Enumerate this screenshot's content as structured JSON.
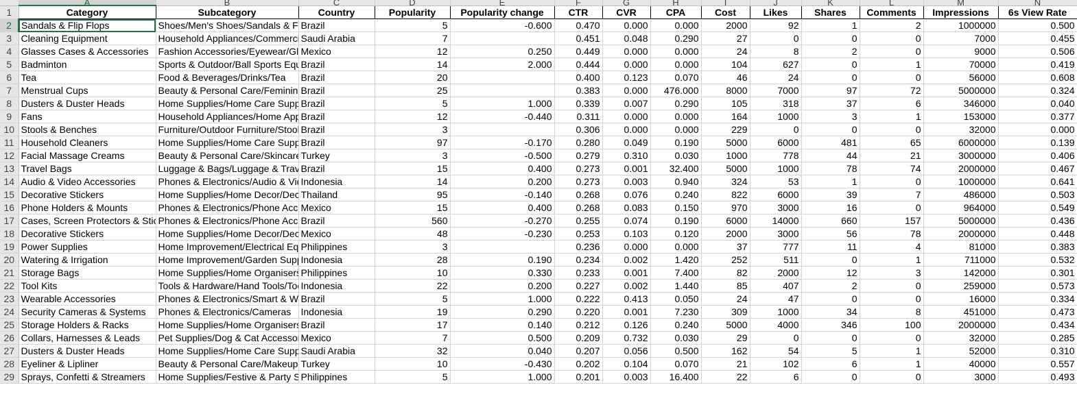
{
  "columns": [
    "A",
    "B",
    "C",
    "D",
    "E",
    "F",
    "G",
    "H",
    "I",
    "J",
    "K",
    "L",
    "M",
    "N"
  ],
  "col_align": [
    "left",
    "left",
    "left",
    "right",
    "right",
    "right",
    "right",
    "right",
    "right",
    "right",
    "right",
    "right",
    "right",
    "right"
  ],
  "headers": [
    "Category",
    "Subcategory",
    "Country",
    "Popularity",
    "Popularity change",
    "CTR",
    "CVR",
    "CPA",
    "Cost",
    "Likes",
    "Shares",
    "Comments",
    "Impressions",
    "6s View Rate"
  ],
  "selected_cell": {
    "col": 0,
    "row": 2
  },
  "rows": [
    {
      "n": "2",
      "c": [
        "Sandals & Flip Flops",
        "Shoes/Men's Shoes/Sandals & Flip Flops",
        "Brazil",
        "5",
        "-0.600",
        "0.470",
        "0.000",
        "0.000",
        "2000",
        "92",
        "1",
        "2",
        "1000000",
        "0.500"
      ]
    },
    {
      "n": "3",
      "c": [
        "Cleaning Equipment",
        "Household Appliances/Commercial Appliances",
        "Saudi Arabia",
        "7",
        "",
        "0.451",
        "0.048",
        "0.290",
        "27",
        "0",
        "0",
        "0",
        "7000",
        "0.455"
      ]
    },
    {
      "n": "4",
      "c": [
        "Glasses Cases & Accessories",
        "Fashion Accessories/Eyewear/Glasses Cases",
        "Mexico",
        "12",
        "0.250",
        "0.449",
        "0.000",
        "0.000",
        "24",
        "8",
        "2",
        "0",
        "9000",
        "0.506"
      ]
    },
    {
      "n": "5",
      "c": [
        "Badminton",
        "Sports & Outdoor/Ball Sports Equipment",
        "Brazil",
        "14",
        "2.000",
        "0.444",
        "0.000",
        "0.000",
        "104",
        "627",
        "0",
        "1",
        "70000",
        "0.419"
      ]
    },
    {
      "n": "6",
      "c": [
        "Tea",
        "Food & Beverages/Drinks/Tea",
        "Brazil",
        "20",
        "",
        "0.400",
        "0.123",
        "0.070",
        "46",
        "24",
        "0",
        "0",
        "56000",
        "0.608"
      ]
    },
    {
      "n": "7",
      "c": [
        "Menstrual Cups",
        "Beauty & Personal Care/Feminine Care",
        "Brazil",
        "25",
        "",
        "0.383",
        "0.000",
        "476.000",
        "8000",
        "7000",
        "97",
        "72",
        "5000000",
        "0.324"
      ]
    },
    {
      "n": "8",
      "c": [
        "Dusters & Duster Heads",
        "Home Supplies/Home Care Supplies",
        "Brazil",
        "5",
        "1.000",
        "0.339",
        "0.007",
        "0.290",
        "105",
        "318",
        "37",
        "6",
        "346000",
        "0.040"
      ]
    },
    {
      "n": "9",
      "c": [
        "Fans",
        "Household Appliances/Home Appliances",
        "Brazil",
        "12",
        "-0.440",
        "0.311",
        "0.000",
        "0.000",
        "164",
        "1000",
        "3",
        "1",
        "153000",
        "0.377"
      ]
    },
    {
      "n": "10",
      "c": [
        "Stools & Benches",
        "Furniture/Outdoor Furniture/Stools",
        "Brazil",
        "3",
        "",
        "0.306",
        "0.000",
        "0.000",
        "229",
        "0",
        "0",
        "0",
        "32000",
        "0.000"
      ]
    },
    {
      "n": "11",
      "c": [
        "Household Cleaners",
        "Home Supplies/Home Care Supplies",
        "Brazil",
        "97",
        "-0.170",
        "0.280",
        "0.049",
        "0.190",
        "5000",
        "6000",
        "481",
        "65",
        "6000000",
        "0.139"
      ]
    },
    {
      "n": "12",
      "c": [
        "Facial Massage Creams",
        "Beauty & Personal Care/Skincare",
        "Turkey",
        "3",
        "-0.500",
        "0.279",
        "0.310",
        "0.030",
        "1000",
        "778",
        "44",
        "21",
        "3000000",
        "0.406"
      ]
    },
    {
      "n": "13",
      "c": [
        "Travel Bags",
        "Luggage & Bags/Luggage & Travel Bags",
        "Brazil",
        "15",
        "0.400",
        "0.273",
        "0.001",
        "32.400",
        "5000",
        "1000",
        "78",
        "74",
        "2000000",
        "0.467"
      ]
    },
    {
      "n": "14",
      "c": [
        "Audio & Video Accessories",
        "Phones & Electronics/Audio & Video",
        "Indonesia",
        "14",
        "0.200",
        "0.273",
        "0.003",
        "0.940",
        "324",
        "53",
        "1",
        "0",
        "1000000",
        "0.641"
      ]
    },
    {
      "n": "15",
      "c": [
        "Decorative Stickers",
        "Home Supplies/Home Decor/Decorative Stickers",
        "Thailand",
        "95",
        "-0.140",
        "0.268",
        "0.076",
        "0.240",
        "822",
        "6000",
        "39",
        "7",
        "486000",
        "0.503"
      ]
    },
    {
      "n": "16",
      "c": [
        "Phone Holders & Mounts",
        "Phones & Electronics/Phone Accessories",
        "Mexico",
        "15",
        "0.400",
        "0.268",
        "0.083",
        "0.150",
        "970",
        "3000",
        "16",
        "0",
        "964000",
        "0.549"
      ]
    },
    {
      "n": "17",
      "c": [
        "Cases, Screen Protectors & Stickers",
        "Phones & Electronics/Phone Accessories",
        "Brazil",
        "560",
        "-0.270",
        "0.255",
        "0.074",
        "0.190",
        "6000",
        "14000",
        "660",
        "157",
        "5000000",
        "0.436"
      ]
    },
    {
      "n": "18",
      "c": [
        "Decorative Stickers",
        "Home Supplies/Home Decor/Decorative Stickers",
        "Mexico",
        "48",
        "-0.230",
        "0.253",
        "0.103",
        "0.120",
        "2000",
        "3000",
        "56",
        "78",
        "2000000",
        "0.448"
      ]
    },
    {
      "n": "19",
      "c": [
        "Power Supplies",
        "Home Improvement/Electrical Equipment",
        "Philippines",
        "3",
        "",
        "0.236",
        "0.000",
        "0.000",
        "37",
        "777",
        "11",
        "4",
        "81000",
        "0.383"
      ]
    },
    {
      "n": "20",
      "c": [
        "Watering & Irrigation",
        "Home Improvement/Garden Supplies",
        "Indonesia",
        "28",
        "0.190",
        "0.234",
        "0.002",
        "1.420",
        "252",
        "511",
        "0",
        "1",
        "711000",
        "0.532"
      ]
    },
    {
      "n": "21",
      "c": [
        "Storage Bags",
        "Home Supplies/Home Organisers",
        "Philippines",
        "10",
        "0.330",
        "0.233",
        "0.001",
        "7.400",
        "82",
        "2000",
        "12",
        "3",
        "142000",
        "0.301"
      ]
    },
    {
      "n": "22",
      "c": [
        "Tool Kits",
        "Tools & Hardware/Hand Tools/Tool Kits",
        "Indonesia",
        "22",
        "0.200",
        "0.227",
        "0.002",
        "1.440",
        "85",
        "407",
        "2",
        "0",
        "259000",
        "0.573"
      ]
    },
    {
      "n": "23",
      "c": [
        "Wearable Accessories",
        "Phones & Electronics/Smart & Wearables",
        "Brazil",
        "5",
        "1.000",
        "0.222",
        "0.413",
        "0.050",
        "24",
        "47",
        "0",
        "0",
        "16000",
        "0.334"
      ]
    },
    {
      "n": "24",
      "c": [
        "Security Cameras & Systems",
        "Phones & Electronics/Cameras",
        "Indonesia",
        "19",
        "0.290",
        "0.220",
        "0.001",
        "7.230",
        "309",
        "1000",
        "34",
        "8",
        "451000",
        "0.473"
      ]
    },
    {
      "n": "25",
      "c": [
        "Storage Holders & Racks",
        "Home Supplies/Home Organisers",
        "Brazil",
        "17",
        "0.140",
        "0.212",
        "0.126",
        "0.240",
        "5000",
        "4000",
        "346",
        "100",
        "2000000",
        "0.434"
      ]
    },
    {
      "n": "26",
      "c": [
        "Collars, Harnesses & Leads",
        "Pet Supplies/Dog & Cat Accessories",
        "Mexico",
        "7",
        "0.500",
        "0.209",
        "0.732",
        "0.030",
        "29",
        "0",
        "0",
        "0",
        "32000",
        "0.285"
      ]
    },
    {
      "n": "27",
      "c": [
        "Dusters & Duster Heads",
        "Home Supplies/Home Care Supplies",
        "Saudi Arabia",
        "32",
        "0.040",
        "0.207",
        "0.056",
        "0.500",
        "162",
        "54",
        "5",
        "1",
        "52000",
        "0.310"
      ]
    },
    {
      "n": "28",
      "c": [
        "Eyeliner & Lipliner",
        "Beauty & Personal Care/Makeup",
        "Turkey",
        "10",
        "-0.430",
        "0.202",
        "0.104",
        "0.070",
        "21",
        "102",
        "6",
        "1",
        "40000",
        "0.557"
      ]
    },
    {
      "n": "29",
      "c": [
        "Sprays, Confetti & Streamers",
        "Home Supplies/Festive & Party Supplies",
        "Philippines",
        "5",
        "1.000",
        "0.201",
        "0.003",
        "16.400",
        "22",
        "6",
        "0",
        "0",
        "3000",
        "0.493"
      ]
    }
  ]
}
